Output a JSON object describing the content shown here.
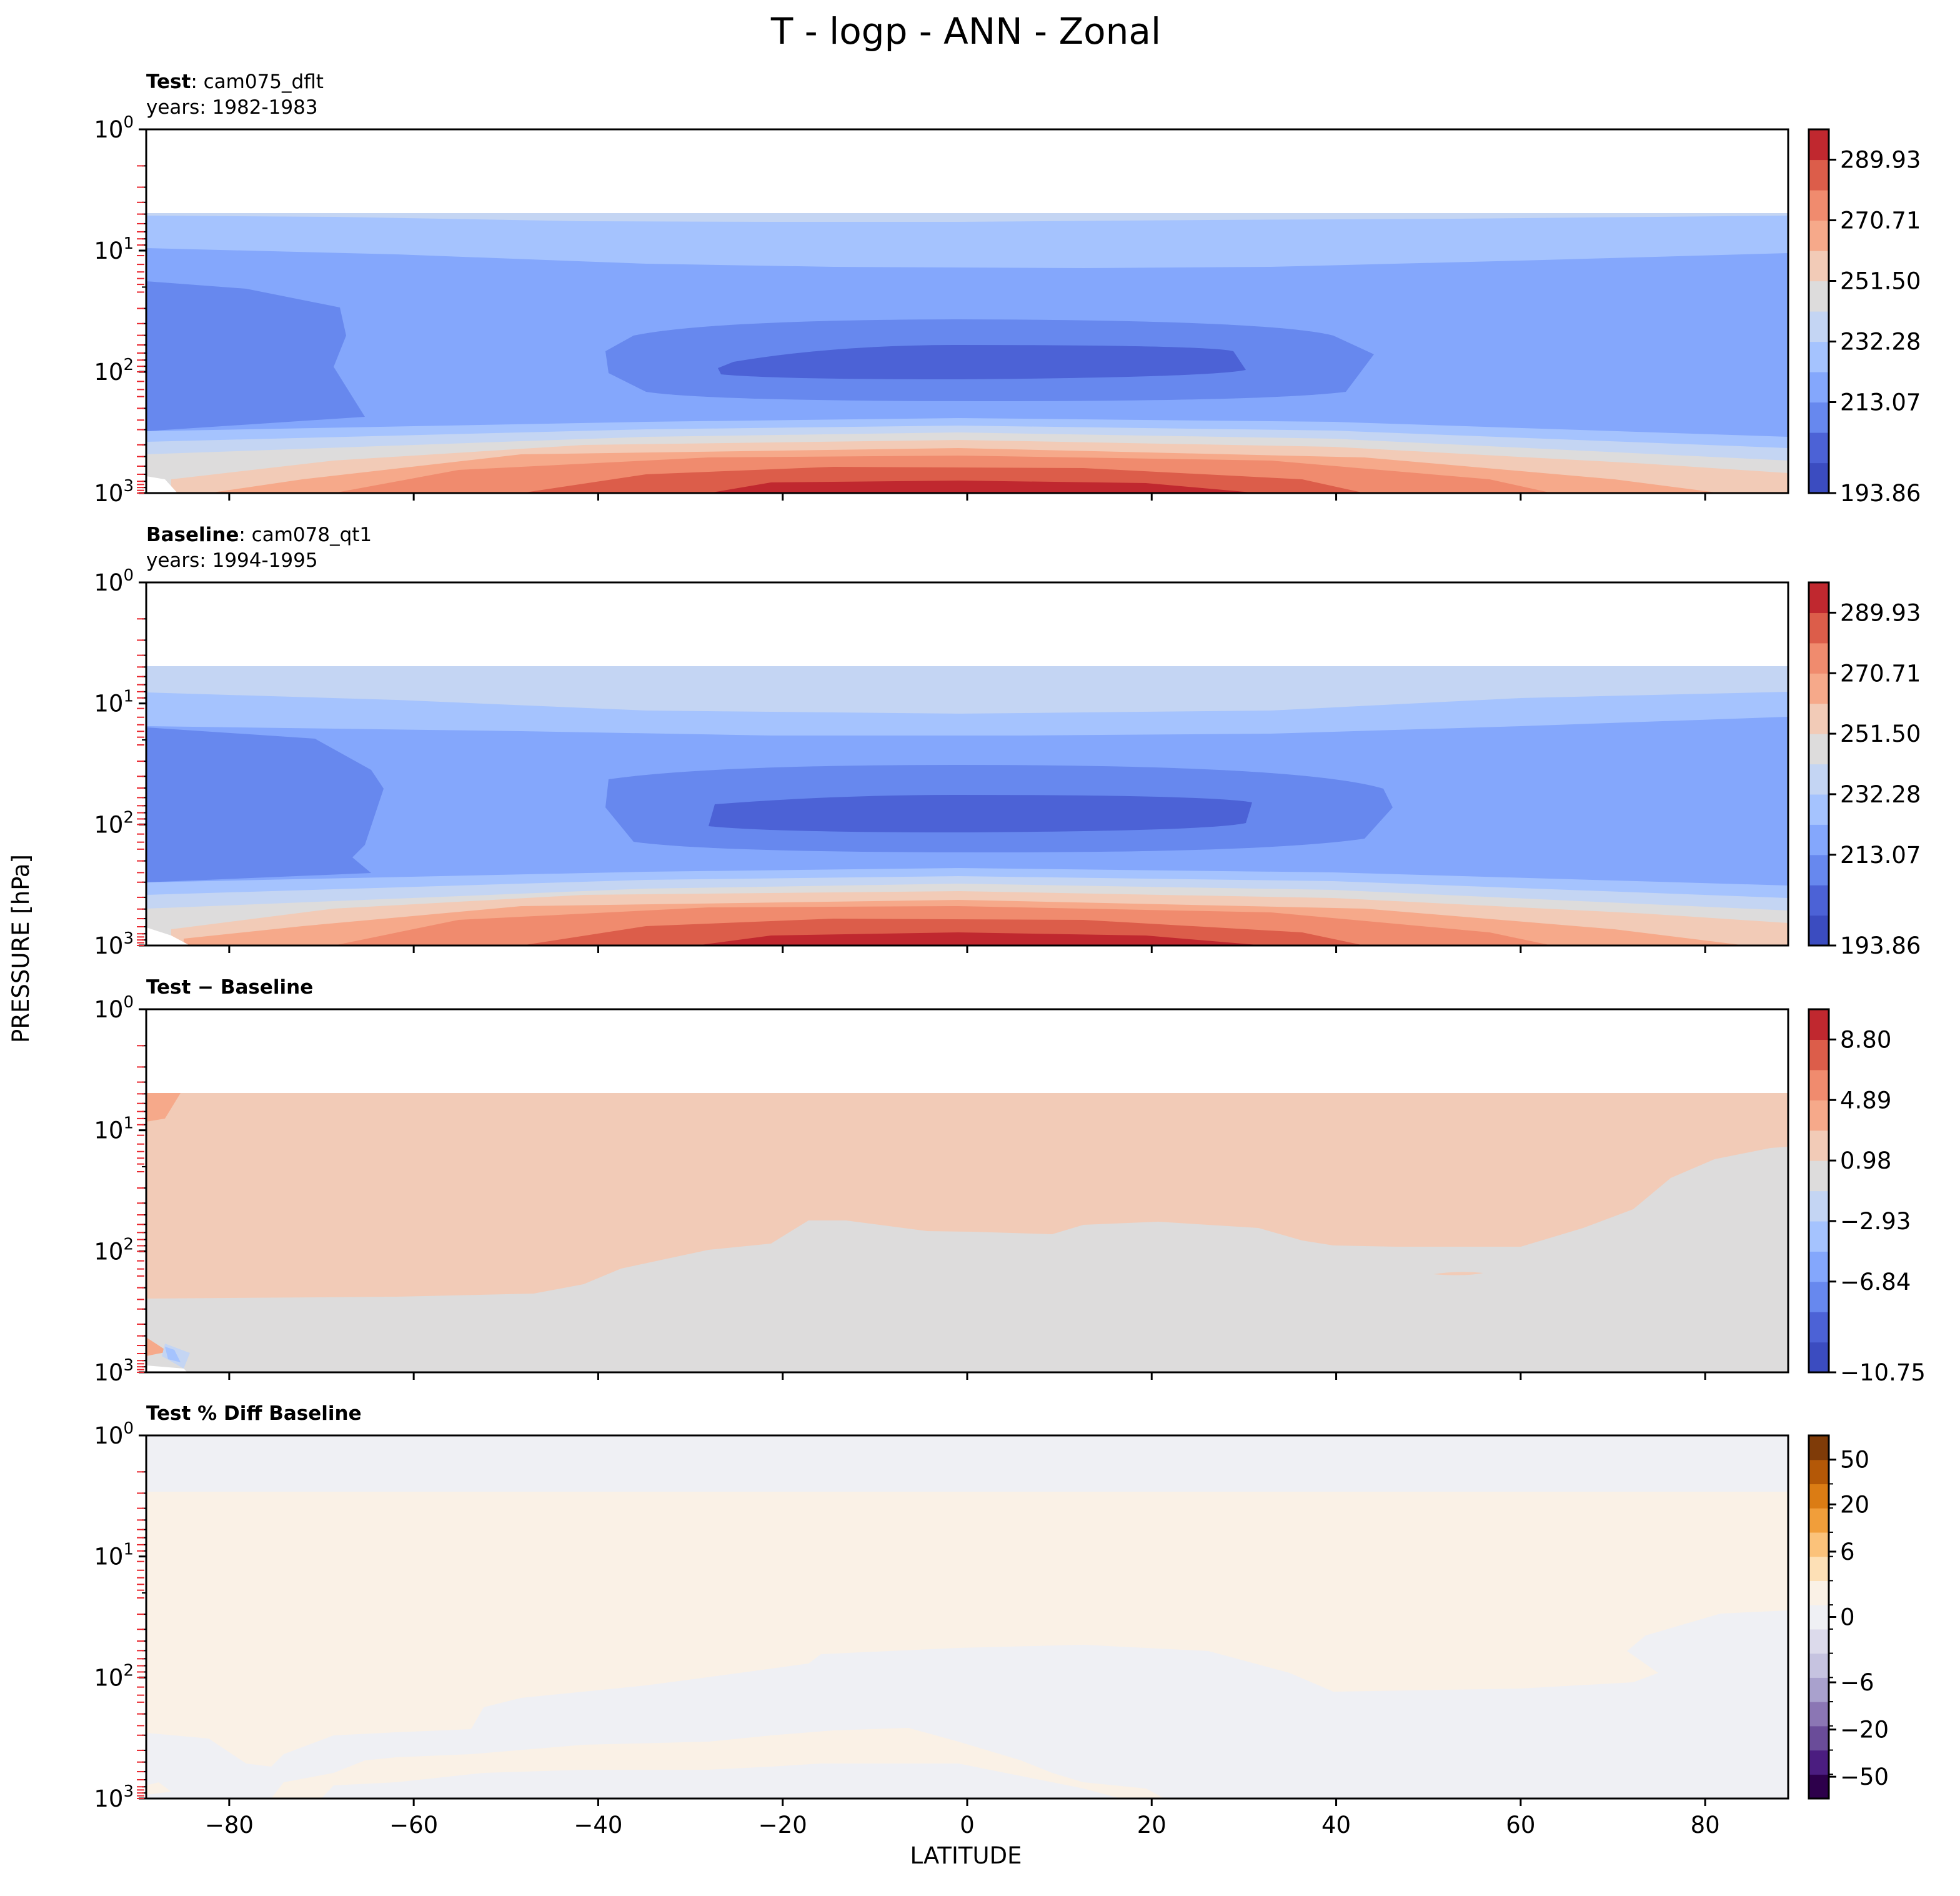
{
  "figure": {
    "title": "T - logp - ANN - Zonal",
    "ylabel": "PRESSURE [hPa]",
    "xlabel": "LATITUDE"
  },
  "colors": {
    "coolwarm": [
      "#3b4cc0",
      "#4c62d6",
      "#6788ee",
      "#84a7fc",
      "#a5c3fe",
      "#c4d5f3",
      "#dddcdc",
      "#f2cbb7",
      "#f6a98a",
      "#f08b6e",
      "#dc5d4a",
      "#c0282f"
    ],
    "puor": [
      "#2d004b",
      "#4b1d80",
      "#6a4c99",
      "#8b76b4",
      "#a9a1cd",
      "#c6c3e0",
      "#dcdaeb",
      "#eff0f4",
      "#faf1e6",
      "#fde0b6",
      "#fbc27a",
      "#f19e3a",
      "#db7c14",
      "#b45807",
      "#7f3b08"
    ],
    "red_ticks": "#e8262d"
  },
  "chart_data": [
    {
      "type": "contour",
      "panel": "test",
      "label_bold": "Test",
      "label_rest": ": cam075_dflt",
      "years": "years: 1982-1983",
      "x": [
        -89,
        -80,
        -70,
        -60,
        -50,
        -40,
        -30,
        -20,
        -10,
        0,
        10,
        20,
        30,
        40,
        50,
        60,
        70,
        80,
        89
      ],
      "y_levels_hPa": [
        5,
        10,
        20,
        50,
        100,
        200,
        300,
        500,
        700,
        850,
        1000
      ],
      "colorbar_ticks": [
        "289.93",
        "270.71",
        "251.50",
        "232.28",
        "213.07",
        "193.86"
      ],
      "xlim": [
        -89,
        89
      ],
      "ylim": [
        1000,
        1
      ],
      "yscale": "log",
      "field_summary": {
        "stratosphere": "232-251",
        "tropical_tropopause_min": "194-203",
        "surface_tropics_max": ">290"
      }
    },
    {
      "type": "contour",
      "panel": "baseline",
      "label_bold": "Baseline",
      "label_rest": ": cam078_qt1",
      "years": "years: 1994-1995",
      "x": [
        -89,
        -80,
        -70,
        -60,
        -50,
        -40,
        -30,
        -20,
        -10,
        0,
        10,
        20,
        30,
        40,
        50,
        60,
        70,
        80,
        89
      ],
      "y_levels_hPa": [
        5,
        10,
        20,
        50,
        100,
        200,
        300,
        500,
        700,
        850,
        1000
      ],
      "colorbar_ticks": [
        "289.93",
        "270.71",
        "251.50",
        "232.28",
        "213.07",
        "193.86"
      ],
      "xlim": [
        -89,
        89
      ],
      "ylim": [
        1000,
        1
      ],
      "yscale": "log"
    },
    {
      "type": "contour",
      "panel": "difference",
      "label_bold": "Test − Baseline",
      "colorbar_ticks": [
        "8.80",
        "4.89",
        "0.98",
        "−2.93",
        "−6.84",
        "−10.75"
      ],
      "xlim": [
        -89,
        89
      ],
      "ylim": [
        1000,
        1
      ],
      "yscale": "log",
      "field_summary": {
        "upper_levels": "0.98 to 4.89",
        "lower_levels": "−2.93 to 0.98"
      }
    },
    {
      "type": "contour",
      "panel": "percent_diff",
      "label_bold": "Test % Diff Baseline",
      "colorbar_ticks": [
        "50",
        "20",
        "6",
        "0",
        "−6",
        "−20",
        "−50"
      ],
      "xlim": [
        -89,
        89
      ],
      "ylim": [
        1000,
        1
      ],
      "yscale": "log"
    }
  ],
  "axes": {
    "y_ticks": [
      {
        "base": "10",
        "exp": "0"
      },
      {
        "base": "10",
        "exp": "1"
      },
      {
        "base": "10",
        "exp": "2"
      },
      {
        "base": "10",
        "exp": "3"
      }
    ],
    "x_ticks": [
      "−80",
      "−60",
      "−40",
      "−20",
      "0",
      "20",
      "40",
      "60",
      "80"
    ],
    "x_tick_values": [
      -80,
      -60,
      -40,
      -20,
      0,
      20,
      40,
      60,
      80
    ]
  }
}
